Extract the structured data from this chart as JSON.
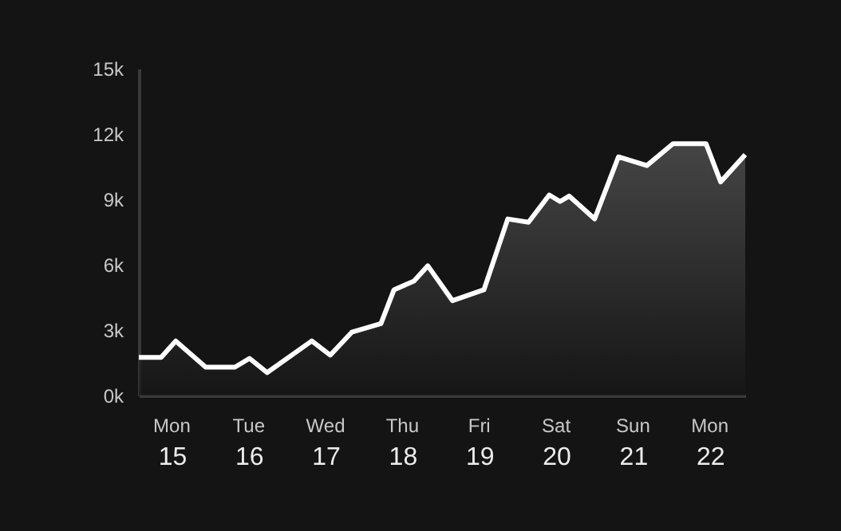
{
  "chart_data": {
    "type": "area",
    "x": [
      14.57,
      14.86,
      15.05,
      15.44,
      15.82,
      16.01,
      16.24,
      16.82,
      17.06,
      17.34,
      17.72,
      17.89,
      18.15,
      18.33,
      18.65,
      19.06,
      19.37,
      19.64,
      19.91,
      20.05,
      20.17,
      20.5,
      20.81,
      21.18,
      21.52,
      21.95,
      22.14,
      22.46
    ],
    "series": [
      {
        "color": "#ffffff",
        "values": [
          1750,
          1750,
          2500,
          1300,
          1300,
          1700,
          1050,
          2500,
          1850,
          2900,
          3300,
          4850,
          5250,
          5950,
          4350,
          4850,
          8100,
          7950,
          9200,
          8900,
          9150,
          8100,
          10950,
          10550,
          11550,
          11550,
          9800,
          11050
        ]
      }
    ],
    "xlim": [
      14.57,
      22.46
    ],
    "xticks": [
      15,
      16,
      17,
      18,
      19,
      20,
      21,
      22
    ],
    "annotations": [
      "Mon",
      "Tue",
      "Wed",
      "Thu",
      "Fri",
      "Sat",
      "Sun",
      "Mon"
    ],
    "ylim": [
      0,
      15000
    ],
    "yticks": [
      {
        "value": 0,
        "label": "0k"
      },
      {
        "value": 3000,
        "label": "3k"
      },
      {
        "value": 6000,
        "label": "6k"
      },
      {
        "value": 9000,
        "label": "9k"
      },
      {
        "value": 12000,
        "label": "12k"
      },
      {
        "value": 15000,
        "label": "15k"
      }
    ]
  }
}
